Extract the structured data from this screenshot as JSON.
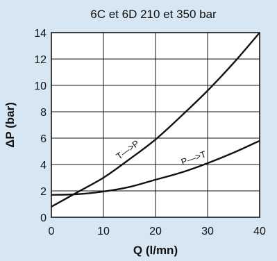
{
  "chart_data": {
    "type": "line",
    "title": "6C et 6D 210 et 350 bar",
    "xlabel": "Q (l/mn)",
    "ylabel": "ΔP (bar)",
    "xlim": [
      0,
      40
    ],
    "ylim": [
      0,
      14
    ],
    "x_ticks": [
      "0",
      "10",
      "20",
      "30",
      "40"
    ],
    "y_ticks": [
      "0",
      "2",
      "4",
      "6",
      "8",
      "10",
      "12",
      "14"
    ],
    "grid": true,
    "series": [
      {
        "name": "T—>P",
        "x": [
          0,
          5,
          10,
          15,
          20,
          25,
          30,
          35,
          40
        ],
        "y": [
          0.8,
          1.9,
          3.0,
          4.4,
          5.9,
          7.7,
          9.6,
          11.7,
          14.0
        ]
      },
      {
        "name": "P—>T",
        "x": [
          0,
          5,
          10,
          15,
          20,
          25,
          30,
          35,
          40
        ],
        "y": [
          1.7,
          1.75,
          1.95,
          2.3,
          2.85,
          3.4,
          4.1,
          4.9,
          5.8
        ]
      }
    ]
  }
}
